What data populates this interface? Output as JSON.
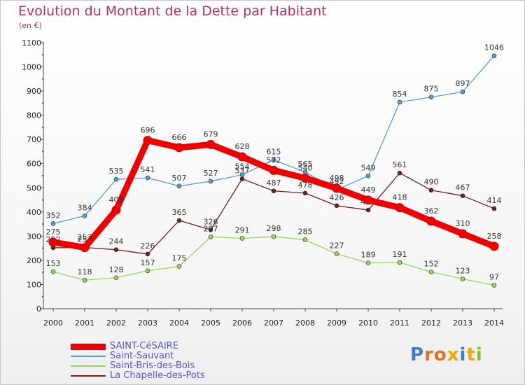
{
  "header": {
    "title": "Evolution du Montant de la Dette par Habitant",
    "unit": "(en €)"
  },
  "logo": {
    "text": "Proxiti",
    "letter_colors": [
      "#3a7fc8",
      "#e0702a",
      "#e0702a",
      "#f2a800",
      "#3a7fc8",
      "#f2a800",
      "#8bbf2c"
    ]
  },
  "chart_data": {
    "type": "line",
    "title": "Evolution du Montant de la Dette par Habitant",
    "ylabel": "(en €)",
    "xlabel": "",
    "ylim": [
      0,
      1100
    ],
    "y_ticks": [
      0,
      100,
      200,
      300,
      400,
      500,
      600,
      700,
      800,
      900,
      1000,
      1100
    ],
    "grid": false,
    "legend_position": "bottom-left",
    "x": [
      "2000",
      "2001",
      "2002",
      "2003",
      "2004",
      "2005",
      "2006",
      "2007",
      "2008",
      "2009",
      "2010",
      "2011",
      "2012",
      "2013",
      "2014"
    ],
    "series": [
      {
        "name": "La Chapelle-des-Pots",
        "color": "#6b2020",
        "values": [
          252,
          253,
          244,
          226,
          365,
          326,
          537,
          487,
          478,
          426,
          408,
          561,
          490,
          467,
          414
        ]
      },
      {
        "name": "Saint-Bris-des-Bois",
        "color": "#9ad45a",
        "values": [
          153,
          118,
          128,
          157,
          175,
          297,
          291,
          298,
          285,
          227,
          189,
          191,
          152,
          123,
          97
        ]
      },
      {
        "name": "Saint-Sauvant",
        "color": "#5a9bd0",
        "values": [
          352,
          384,
          535,
          541,
          507,
          527,
          554,
          615,
          565,
          492,
          549,
          854,
          875,
          897,
          1046
        ]
      },
      {
        "name": "SAINT-CéSAIRE",
        "color": "#ee0000",
        "values": [
          275,
          253,
          408,
          696,
          666,
          679,
          628,
          572,
          540,
          498,
          449,
          418,
          362,
          310,
          258
        ]
      }
    ]
  },
  "legend": [
    {
      "label": "SAINT-CéSAIRE",
      "color": "#ee0000",
      "thickness": 9
    },
    {
      "label": "Saint-Sauvant",
      "color": "#5a9bd0",
      "thickness": 2
    },
    {
      "label": "Saint-Bris-des-Bois",
      "color": "#9ad45a",
      "thickness": 2
    },
    {
      "label": "La Chapelle-des-Pots",
      "color": "#6b2020",
      "thickness": 2
    }
  ]
}
